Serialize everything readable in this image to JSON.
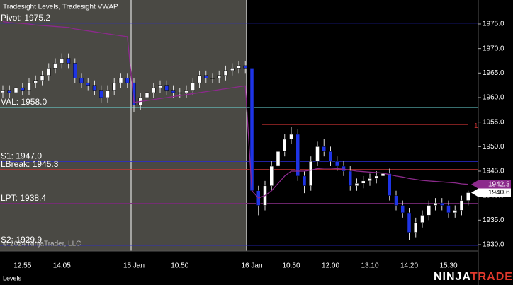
{
  "chart_data": {
    "type": "candlestick",
    "title": "Tradesight Levels, Tradesight VWAP",
    "categories": [
      null,
      null,
      null,
      "12:55",
      null,
      null,
      null,
      null,
      null,
      "14:05",
      null,
      null,
      null,
      null,
      null,
      null,
      null,
      null,
      null,
      null,
      "15 Jan",
      null,
      null,
      null,
      null,
      null,
      null,
      "10:50",
      null,
      null,
      null,
      null,
      null,
      null,
      null,
      null,
      null,
      null,
      "16 Jan",
      null,
      null,
      null,
      null,
      null,
      "10:50",
      null,
      null,
      null,
      null,
      null,
      "12:00",
      null,
      null,
      null,
      null,
      null,
      "13:10",
      null,
      null,
      null,
      null,
      null,
      "14:20",
      null,
      null,
      null,
      null,
      null,
      "15:30",
      null,
      null,
      null
    ],
    "open": [
      1961,
      1961.5,
      1961,
      1962,
      1961.5,
      1963,
      1963.5,
      1964.5,
      1966,
      1967,
      1968,
      1967,
      1964,
      1963,
      1962.5,
      1961.5,
      1960,
      1961.5,
      1963,
      1964,
      1963,
      1958.5,
      1960,
      1961,
      1962,
      1962.5,
      1961.5,
      1961,
      1961,
      1961.5,
      1963,
      1964.5,
      1964,
      1964,
      1964.5,
      1965.5,
      1966,
      1966.5,
      1966,
      1941,
      1938,
      1942,
      1946,
      1949,
      1951.5,
      1952.5,
      1944,
      1942,
      1947,
      1950,
      1949,
      1947,
      1946,
      1945,
      1942,
      1942.5,
      1943,
      1943.5,
      1944,
      1944.5,
      1940,
      1938,
      1936.5,
      1932.5,
      1934.5,
      1936,
      1938,
      1938.5,
      1938,
      1936.5,
      1937,
      1939
    ],
    "high": [
      1962.5,
      1962.5,
      1963,
      1963,
      1964,
      1964.5,
      1965.5,
      1967,
      1968,
      1969,
      1969,
      1968,
      1965,
      1964,
      1963.5,
      1962.5,
      1962.5,
      1964,
      1965,
      1965,
      1964,
      1961,
      1962,
      1963,
      1963.5,
      1963.5,
      1962.5,
      1962,
      1962.5,
      1964,
      1965.5,
      1965.5,
      1965,
      1965.5,
      1966.5,
      1967,
      1967.5,
      1967.5,
      1967,
      1942,
      1943,
      1947,
      1950,
      1952.5,
      1954,
      1953.5,
      1945,
      1948,
      1951,
      1951.5,
      1950,
      1948,
      1947,
      1946,
      1943.5,
      1944,
      1944.5,
      1945,
      1946,
      1945.5,
      1941,
      1939,
      1937.5,
      1935.5,
      1937,
      1939,
      1939.5,
      1939.5,
      1939,
      1938,
      1940,
      1941
    ],
    "low": [
      1960,
      1960,
      1960,
      1960.5,
      1960.5,
      1962,
      1962.5,
      1963.5,
      1965,
      1966,
      1966,
      1963,
      1962,
      1961.5,
      1960.5,
      1959,
      1959,
      1960.5,
      1962,
      1962,
      1957,
      1957.5,
      1959,
      1960,
      1961,
      1960.5,
      1960,
      1960,
      1960,
      1960.5,
      1962,
      1963,
      1963,
      1963,
      1963.5,
      1964.5,
      1965,
      1965,
      1940,
      1936,
      1937,
      1941,
      1945,
      1948,
      1950.5,
      1943,
      1940.5,
      1941,
      1946,
      1948,
      1946,
      1945,
      1944,
      1941,
      1941,
      1941.5,
      1942,
      1942.5,
      1943,
      1939,
      1937,
      1935.5,
      1931,
      1931.5,
      1933.5,
      1935,
      1937,
      1937,
      1935.5,
      1935.5,
      1936,
      1938
    ],
    "close": [
      1961.5,
      1961,
      1962,
      1961.5,
      1963,
      1963.5,
      1964.5,
      1966,
      1967,
      1968,
      1967,
      1964,
      1963,
      1962.5,
      1961.5,
      1960,
      1961.5,
      1963,
      1964,
      1963,
      1958.5,
      1960,
      1961,
      1962,
      1962.5,
      1961.5,
      1961,
      1961,
      1961.5,
      1963,
      1964.5,
      1964,
      1964,
      1964.5,
      1965.5,
      1966,
      1966.5,
      1966,
      1941,
      1938,
      1942,
      1946,
      1949,
      1951.5,
      1952.5,
      1944,
      1942,
      1947,
      1950,
      1949,
      1947,
      1946,
      1945,
      1942,
      1942.5,
      1943,
      1943.5,
      1944,
      1944.5,
      1940,
      1938,
      1936.5,
      1932.5,
      1934.5,
      1936,
      1938,
      1938.5,
      1938,
      1936.5,
      1937,
      1939,
      1940.6
    ],
    "up_color": "#ffffff",
    "down_color": "#1e34e6",
    "vwap": {
      "color": "#8c2a8c",
      "values": [
        1975.5,
        1975.3,
        1975.2,
        1975.1,
        1975,
        1974.8,
        1974.7,
        1974.6,
        1974.5,
        1974.4,
        1974.3,
        1974,
        1973.8,
        1973.6,
        1973.4,
        1973.2,
        1973,
        1972.8,
        1972.6,
        1972.4,
        1959,
        1959.2,
        1959.4,
        1959.6,
        1959.8,
        1960,
        1960.2,
        1960.4,
        1960.6,
        1960.8,
        1961,
        1961.2,
        1961.4,
        1961.6,
        1961.8,
        1962,
        1962.2,
        1962.4,
        1941,
        1939.5,
        1940,
        1941,
        1942.5,
        1944,
        1945,
        1945,
        1945,
        1945.2,
        1945.5,
        1945.6,
        1945.6,
        1945.5,
        1945.4,
        1945.2,
        1945,
        1944.9,
        1944.8,
        1944.7,
        1944.6,
        1944.3,
        1944,
        1943.8,
        1943.5,
        1943.3,
        1943.1,
        1943,
        1942.9,
        1942.8,
        1942.7,
        1942.6,
        1942.4,
        1942.3
      ]
    },
    "levels": [
      {
        "label": "Pivot: 1975.2",
        "value": 1975.2,
        "color": "#2a2ad8"
      },
      {
        "label": "VAL: 1958.0",
        "value": 1958.0,
        "color": "#6fdede"
      },
      {
        "label": "S1: 1947.0",
        "value": 1947.0,
        "color": "#2a2ad8"
      },
      {
        "label": "LBreak: 1945.3",
        "value": 1945.3,
        "color": "#c83232"
      },
      {
        "label": "LPT: 1938.4",
        "value": 1938.4,
        "color": "#7a2a7a"
      },
      {
        "label": "S2: 1929.9",
        "value": 1929.9,
        "color": "#2a2ad8"
      }
    ],
    "target": {
      "y": 1954.5,
      "text": "1",
      "color": "#c83232"
    },
    "ylim": [
      1928.7,
      1979.9
    ],
    "yticks": [
      {
        "value": 1930,
        "label": "1930.0"
      },
      {
        "value": 1935,
        "label": "1935.0"
      },
      {
        "value": 1940,
        "label": "1940.0"
      },
      {
        "value": 1945,
        "label": "1945.0"
      },
      {
        "value": 1950,
        "label": "1950.0"
      },
      {
        "value": 1955,
        "label": "1955.0"
      },
      {
        "value": 1960,
        "label": "1960.0"
      },
      {
        "value": 1965,
        "label": "1965.0"
      },
      {
        "value": 1970,
        "label": "1970.0"
      },
      {
        "value": 1975,
        "label": "1975.0"
      }
    ]
  },
  "watermark": "© 2024 NinjaTrader, LLC",
  "panel_label": "Levels",
  "logo": {
    "first": "NINJA",
    "second": "TRADER"
  }
}
